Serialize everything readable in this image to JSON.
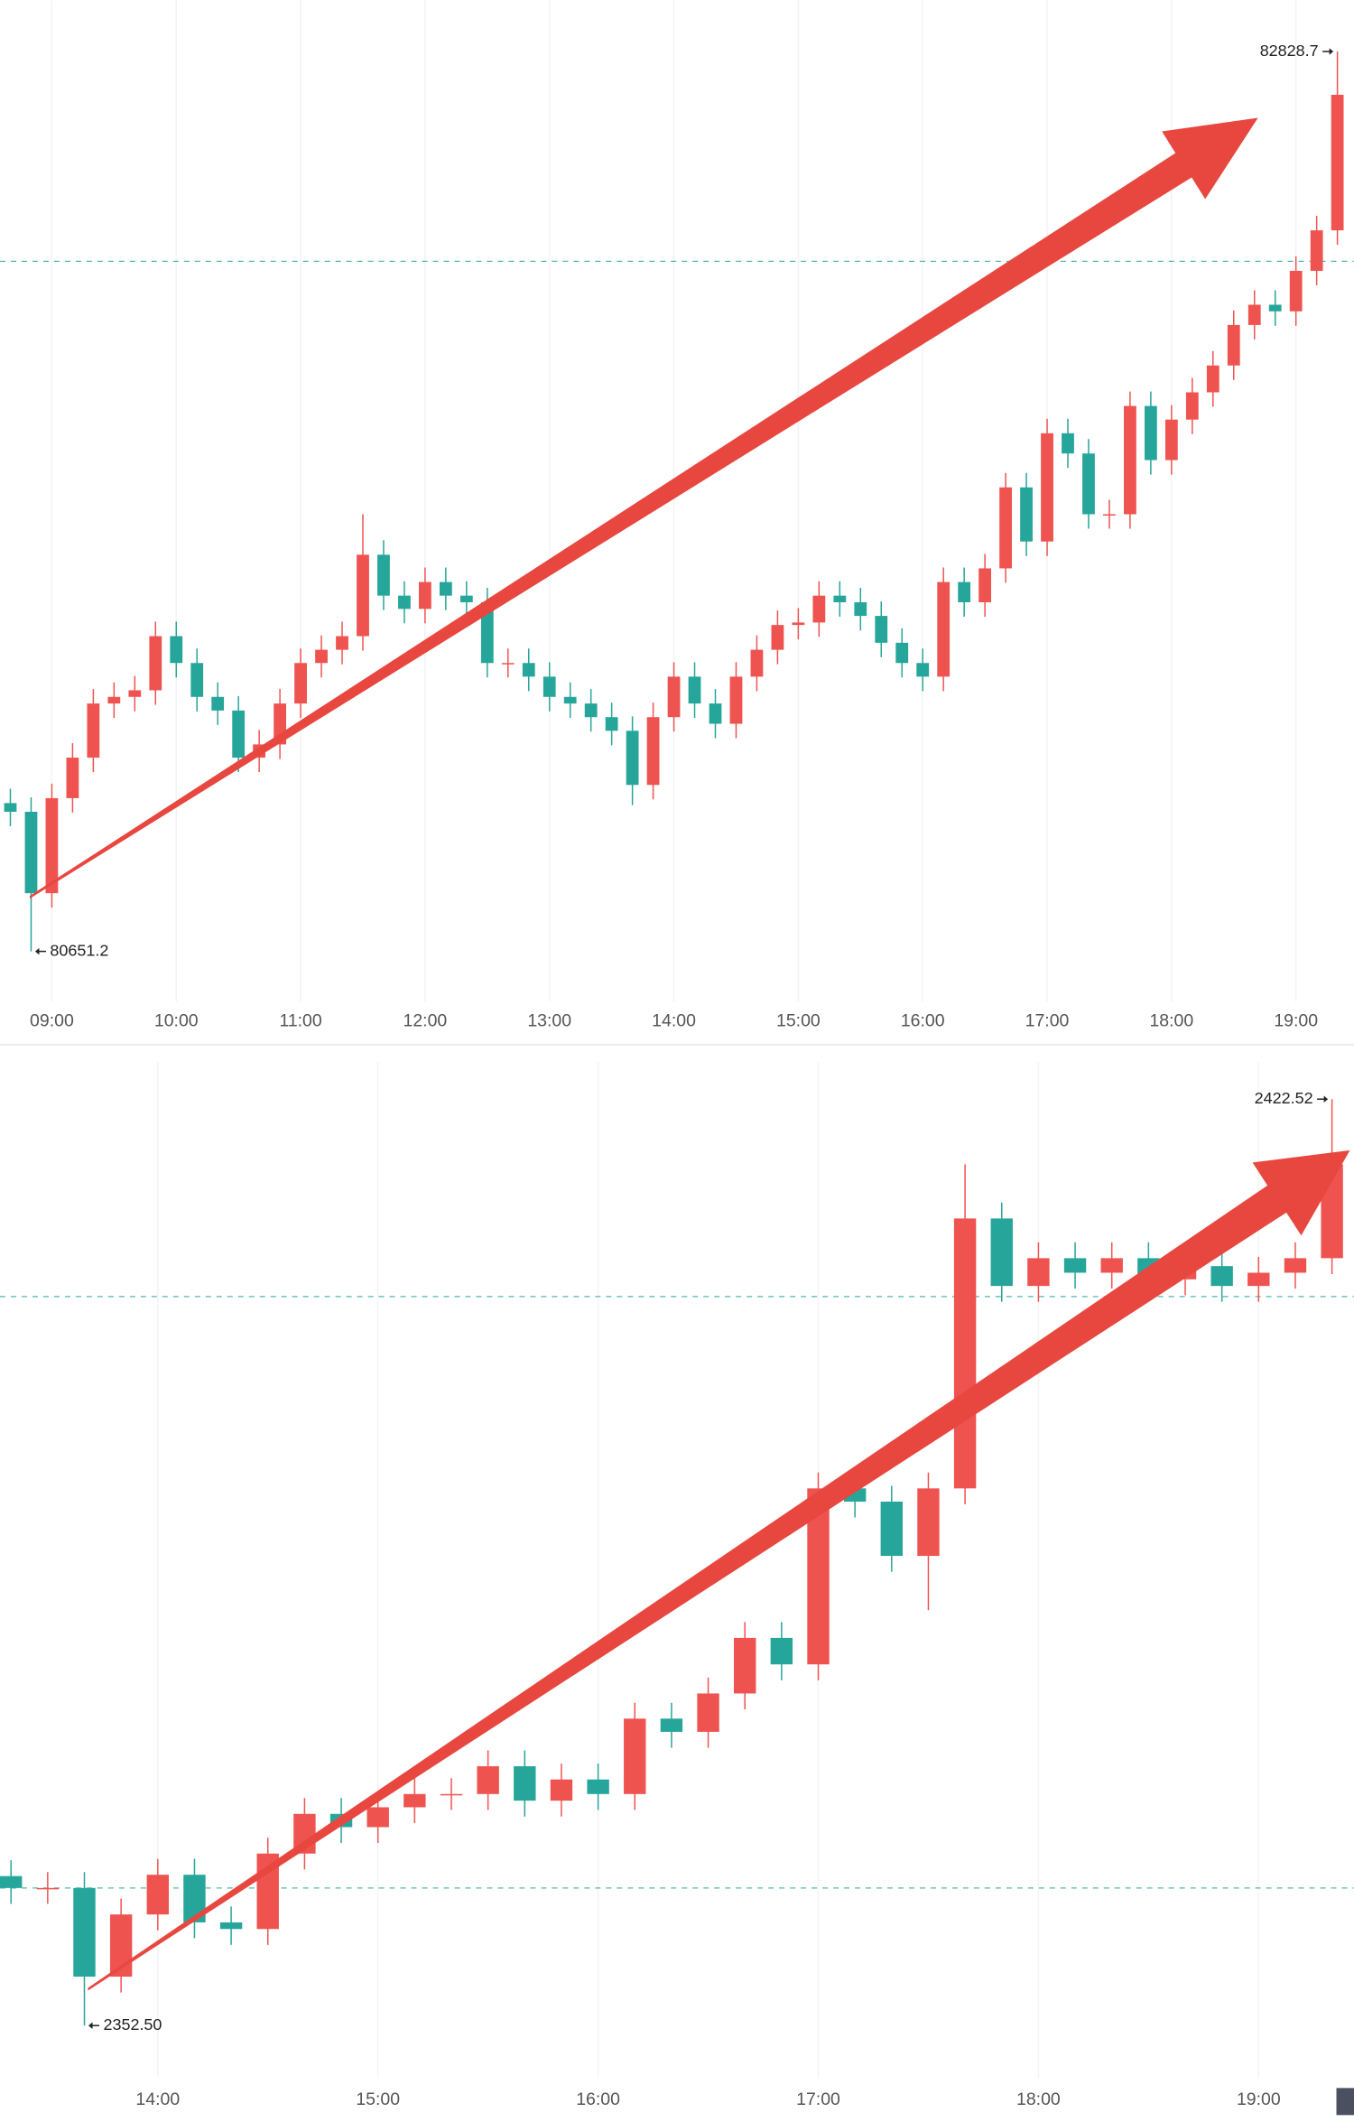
{
  "chart_data": [
    {
      "type": "candlestick",
      "x": [
        "08:40",
        "08:50",
        "09:00",
        "09:10",
        "09:20",
        "09:30",
        "09:40",
        "09:50",
        "10:00",
        "10:10",
        "10:20",
        "10:30",
        "10:40",
        "10:50",
        "11:00",
        "11:10",
        "11:20",
        "11:30",
        "11:40",
        "11:50",
        "12:00",
        "12:10",
        "12:20",
        "12:30",
        "12:40",
        "12:50",
        "13:00",
        "13:10",
        "13:20",
        "13:30",
        "13:40",
        "13:50",
        "14:00",
        "14:10",
        "14:20",
        "14:30",
        "14:40",
        "14:50",
        "15:00",
        "15:10",
        "15:20",
        "15:30",
        "15:40",
        "15:50",
        "16:00",
        "16:10",
        "16:20",
        "16:30",
        "16:40",
        "16:50",
        "17:00",
        "17:10",
        "17:20",
        "17:30",
        "17:40",
        "17:50",
        "18:00",
        "18:10",
        "18:20",
        "18:30",
        "18:40",
        "18:50",
        "19:00",
        "19:10",
        "19:20"
      ],
      "open": [
        81010,
        80989,
        80792,
        81022,
        81120,
        81251,
        81267,
        81283,
        81414,
        81349,
        81267,
        81234,
        81120,
        81152,
        81251,
        81349,
        81381,
        81414,
        81611,
        81512,
        81480,
        81545,
        81512,
        81496,
        81349,
        81349,
        81316,
        81267,
        81251,
        81218,
        81185,
        81054,
        81218,
        81316,
        81251,
        81202,
        81316,
        81381,
        81441,
        81447,
        81512,
        81496,
        81463,
        81398,
        81349,
        81316,
        81545,
        81496,
        81578,
        81774,
        81643,
        81905,
        81856,
        81709,
        81709,
        81971,
        81840,
        81938,
        82004,
        82069,
        82167,
        82216,
        82200,
        82298,
        82396
      ],
      "high": [
        81045,
        81024,
        81057,
        81155,
        81286,
        81302,
        81318,
        81449,
        81449,
        81384,
        81302,
        81269,
        81187,
        81286,
        81384,
        81416,
        81449,
        81709,
        81646,
        81547,
        81580,
        81580,
        81547,
        81531,
        81384,
        81384,
        81351,
        81302,
        81286,
        81253,
        81220,
        81253,
        81351,
        81351,
        81286,
        81351,
        81416,
        81476,
        81482,
        81547,
        81547,
        81531,
        81498,
        81433,
        81384,
        81580,
        81580,
        81613,
        81809,
        81809,
        81940,
        81940,
        81891,
        81744,
        82006,
        82006,
        81973,
        82039,
        82104,
        82202,
        82251,
        82251,
        82333,
        82431,
        82828.7
      ],
      "low": [
        80954,
        80651.2,
        80757,
        80987,
        81085,
        81216,
        81232,
        81248,
        81314,
        81232,
        81199,
        81085,
        81085,
        81117,
        81216,
        81314,
        81346,
        81379,
        81477,
        81445,
        81445,
        81477,
        81461,
        81314,
        81314,
        81281,
        81232,
        81216,
        81183,
        81150,
        81005,
        81019,
        81183,
        81216,
        81167,
        81167,
        81281,
        81346,
        81406,
        81412,
        81461,
        81428,
        81363,
        81314,
        81281,
        81281,
        81461,
        81461,
        81543,
        81608,
        81608,
        81821,
        81674,
        81674,
        81674,
        81805,
        81805,
        81903,
        81969,
        82034,
        82132,
        82165,
        82165,
        82263,
        82361
      ],
      "close": [
        80989,
        80792,
        81022,
        81120,
        81251,
        81267,
        81283,
        81414,
        81349,
        81267,
        81234,
        81120,
        81152,
        81251,
        81349,
        81381,
        81414,
        81611,
        81512,
        81480,
        81545,
        81512,
        81496,
        81349,
        81349,
        81316,
        81267,
        81251,
        81218,
        81185,
        81054,
        81218,
        81316,
        81251,
        81202,
        81316,
        81381,
        81441,
        81447,
        81512,
        81496,
        81463,
        81398,
        81349,
        81316,
        81545,
        81496,
        81578,
        81774,
        81643,
        81905,
        81856,
        81709,
        81709,
        81971,
        81840,
        81938,
        82004,
        82069,
        82167,
        82216,
        82200,
        82298,
        82396,
        82724
      ],
      "xlim": [
        "08:35",
        "19:28"
      ],
      "ylim": [
        80530,
        82953
      ],
      "xticks": [
        "09:00",
        "10:00",
        "11:00",
        "12:00",
        "13:00",
        "14:00",
        "15:00",
        "16:00",
        "17:00",
        "18:00",
        "19:00"
      ],
      "ref_lines": [
        82321
      ],
      "high_label": "82828.7",
      "low_label": "80651.2",
      "up_color": "#ef5350",
      "down_color": "#26a69a",
      "grid": true
    },
    {
      "type": "candlestick",
      "x": [
        "13:20",
        "13:30",
        "13:40",
        "13:50",
        "14:00",
        "14:10",
        "14:20",
        "14:30",
        "14:40",
        "14:50",
        "15:00",
        "15:10",
        "15:20",
        "15:30",
        "15:40",
        "15:50",
        "16:00",
        "16:10",
        "16:20",
        "16:30",
        "16:40",
        "16:50",
        "17:00",
        "17:10",
        "17:20",
        "17:30",
        "17:40",
        "17:50",
        "18:00",
        "18:10",
        "18:20",
        "18:30",
        "18:40",
        "18:50",
        "19:00",
        "19:10",
        "19:20"
      ],
      "open": [
        2363.8,
        2362.9,
        2362.9,
        2356.2,
        2360.9,
        2363.9,
        2360.3,
        2359.8,
        2365.5,
        2368.5,
        2367.5,
        2369.0,
        2370.0,
        2370.0,
        2372.1,
        2369.5,
        2371.1,
        2370.0,
        2375.7,
        2374.7,
        2377.6,
        2381.8,
        2379.8,
        2393.1,
        2392.1,
        2388.0,
        2393.1,
        2413.5,
        2408.4,
        2410.5,
        2409.4,
        2410.5,
        2408.9,
        2409.9,
        2408.4,
        2409.4,
        2410.5
      ],
      "high": [
        2365.0,
        2364.1,
        2364.1,
        2362.1,
        2365.1,
        2365.1,
        2361.5,
        2366.7,
        2369.7,
        2369.7,
        2370.2,
        2371.2,
        2371.2,
        2373.3,
        2373.3,
        2372.3,
        2372.3,
        2376.9,
        2376.9,
        2378.8,
        2383.0,
        2383.0,
        2394.3,
        2394.3,
        2393.3,
        2394.3,
        2417.6,
        2414.7,
        2411.7,
        2411.7,
        2411.7,
        2411.7,
        2411.1,
        2411.1,
        2410.6,
        2411.7,
        2422.52
      ],
      "low": [
        2361.7,
        2361.7,
        2352.5,
        2355.0,
        2359.7,
        2359.1,
        2358.6,
        2358.6,
        2364.3,
        2366.3,
        2366.3,
        2367.8,
        2368.8,
        2368.8,
        2368.3,
        2368.3,
        2368.8,
        2368.8,
        2373.5,
        2373.5,
        2376.4,
        2378.6,
        2378.6,
        2390.9,
        2386.8,
        2383.9,
        2391.9,
        2407.2,
        2407.2,
        2408.2,
        2408.2,
        2407.7,
        2407.7,
        2407.2,
        2407.2,
        2408.2,
        2409.3
      ],
      "close": [
        2362.9,
        2362.9,
        2356.2,
        2360.9,
        2363.9,
        2360.3,
        2359.8,
        2365.5,
        2368.5,
        2367.5,
        2369.0,
        2370.0,
        2370.0,
        2372.1,
        2369.5,
        2371.1,
        2370.0,
        2375.7,
        2374.7,
        2377.6,
        2381.8,
        2379.8,
        2393.1,
        2392.1,
        2388.0,
        2393.1,
        2413.5,
        2408.4,
        2410.5,
        2409.4,
        2410.5,
        2408.9,
        2409.9,
        2408.4,
        2409.4,
        2410.5,
        2417.6
      ],
      "xlim": [
        "13:17",
        "19:26"
      ],
      "ylim": [
        2348.6,
        2425.3
      ],
      "xticks": [
        "14:00",
        "15:00",
        "16:00",
        "17:00",
        "18:00",
        "19:00"
      ],
      "ref_lines": [
        2407.6,
        2362.9
      ],
      "high_label": "2422.52",
      "low_label": "2352.50",
      "up_color": "#ef5350",
      "down_color": "#26a69a",
      "grid": true
    }
  ]
}
